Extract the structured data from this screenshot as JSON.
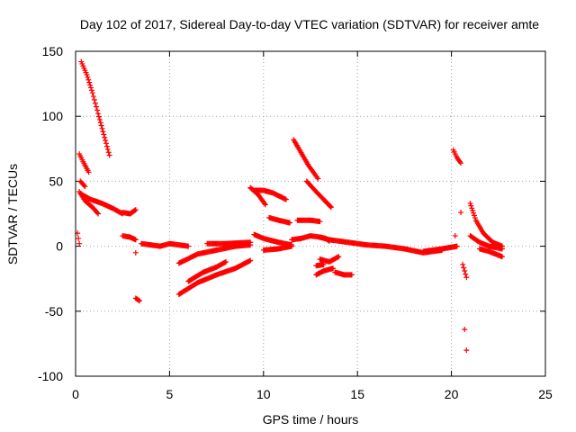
{
  "chart_data": {
    "type": "scatter",
    "title": "Day 102 of 2017, Sidereal Day-to-day VTEC variation (SDTVAR) for receiver amte",
    "xlabel": "GPS time / hours",
    "ylabel": "SDTVAR / TECUs",
    "xlim": [
      0,
      25
    ],
    "ylim": [
      -100,
      150
    ],
    "xticks": [
      0,
      5,
      10,
      15,
      20,
      25
    ],
    "yticks": [
      -100,
      -50,
      0,
      50,
      100,
      150
    ],
    "grid": true,
    "marker": "+",
    "marker_color": "#ff0000",
    "segments": [
      {
        "x": [
          0.1,
          0.2
        ],
        "y": [
          10,
          2
        ]
      },
      {
        "x": [
          0.3,
          0.6,
          0.9,
          1.2,
          1.5,
          1.8
        ],
        "y": [
          142,
          132,
          118,
          102,
          86,
          70
        ]
      },
      {
        "x": [
          0.2,
          0.4,
          0.7
        ],
        "y": [
          71,
          65,
          57
        ]
      },
      {
        "x": [
          0.25,
          0.5
        ],
        "y": [
          50,
          46
        ]
      },
      {
        "x": [
          0.3,
          0.8,
          1.4,
          2.0,
          2.5
        ],
        "y": [
          40,
          36,
          33,
          29,
          25
        ]
      },
      {
        "x": [
          0.2,
          0.5,
          0.9,
          1.2
        ],
        "y": [
          42,
          35,
          30,
          25
        ]
      },
      {
        "x": [
          2.5,
          2.9,
          3.2
        ],
        "y": [
          26,
          25,
          28
        ]
      },
      {
        "x": [
          2.5,
          2.9,
          3.2
        ],
        "y": [
          8,
          7,
          5
        ]
      },
      {
        "x": [
          3.2
        ],
        "y": [
          -5
        ]
      },
      {
        "x": [
          3.2,
          3.4
        ],
        "y": [
          -40,
          -42
        ]
      },
      {
        "x": [
          3.5,
          4.5,
          5.0,
          6.0
        ],
        "y": [
          2,
          0,
          2,
          0
        ]
      },
      {
        "x": [
          5.5,
          6.5,
          7.5,
          8.5,
          9.3
        ],
        "y": [
          -37,
          -28,
          -22,
          -17,
          -11
        ]
      },
      {
        "x": [
          5.5,
          6.5,
          7.5,
          8.5,
          9.3
        ],
        "y": [
          -13,
          -6,
          -3,
          0,
          1
        ]
      },
      {
        "x": [
          6.0,
          6.8,
          7.5,
          8.0
        ],
        "y": [
          -27,
          -20,
          -16,
          -12
        ]
      },
      {
        "x": [
          7.0,
          8.0,
          9.3
        ],
        "y": [
          2,
          2,
          3
        ]
      },
      {
        "x": [
          9.3,
          9.7,
          10.1
        ],
        "y": [
          45,
          40,
          32
        ]
      },
      {
        "x": [
          9.5,
          10.0,
          10.5,
          11.2
        ],
        "y": [
          43,
          43,
          41,
          36
        ]
      },
      {
        "x": [
          10.3,
          10.8,
          11.4
        ],
        "y": [
          22,
          20,
          18
        ]
      },
      {
        "x": [
          9.5,
          10.0,
          10.8,
          11.5
        ],
        "y": [
          9,
          6,
          3,
          1
        ]
      },
      {
        "x": [
          10.0,
          10.8,
          11.5
        ],
        "y": [
          -3,
          -2,
          0
        ]
      },
      {
        "x": [
          11.6,
          12.0,
          12.4,
          12.9
        ],
        "y": [
          82,
          72,
          62,
          52
        ]
      },
      {
        "x": [
          11.8,
          12.5,
          13.0
        ],
        "y": [
          20,
          20,
          19
        ]
      },
      {
        "x": [
          12.3,
          12.8,
          13.2,
          13.6
        ],
        "y": [
          50,
          42,
          36,
          30
        ]
      },
      {
        "x": [
          11.5,
          12.0,
          12.5,
          13.0,
          13.5,
          14.5
        ],
        "y": [
          5,
          6,
          8,
          7,
          5,
          3
        ]
      },
      {
        "x": [
          13.0,
          13.3,
          13.5
        ],
        "y": [
          7,
          6,
          4
        ]
      },
      {
        "x": [
          13.0,
          13.5,
          14.0
        ],
        "y": [
          -10,
          -12,
          -8
        ]
      },
      {
        "x": [
          12.8,
          13.2
        ],
        "y": [
          -15,
          -14
        ]
      },
      {
        "x": [
          12.8,
          13.2,
          13.7
        ],
        "y": [
          -22,
          -19,
          -17
        ]
      },
      {
        "x": [
          13.8,
          14.3,
          14.7
        ],
        "y": [
          -20,
          -22,
          -22
        ]
      },
      {
        "x": [
          14.5,
          15.5,
          16.5,
          17.5,
          18.5,
          19.5
        ],
        "y": [
          3,
          1,
          0,
          -2,
          -5,
          -3
        ]
      },
      {
        "x": [
          18.5,
          19.5,
          20.3
        ],
        "y": [
          -4,
          -2,
          0
        ]
      },
      {
        "x": [
          20.2
        ],
        "y": [
          8
        ]
      },
      {
        "x": [
          20.1,
          20.3,
          20.5
        ],
        "y": [
          74,
          68,
          64
        ]
      },
      {
        "x": [
          20.5
        ],
        "y": [
          26
        ]
      },
      {
        "x": [
          20.6,
          20.8
        ],
        "y": [
          -14,
          -24
        ]
      },
      {
        "x": [
          20.7
        ],
        "y": [
          -64
        ]
      },
      {
        "x": [
          20.8
        ],
        "y": [
          -80
        ]
      },
      {
        "x": [
          21.0,
          21.3,
          21.7,
          22.2,
          22.7
        ],
        "y": [
          33,
          20,
          10,
          3,
          0
        ]
      },
      {
        "x": [
          21.0,
          21.5,
          22.0,
          22.7
        ],
        "y": [
          8,
          3,
          0,
          -2
        ]
      },
      {
        "x": [
          21.5,
          22.0,
          22.7
        ],
        "y": [
          -2,
          -4,
          -8
        ]
      }
    ]
  }
}
